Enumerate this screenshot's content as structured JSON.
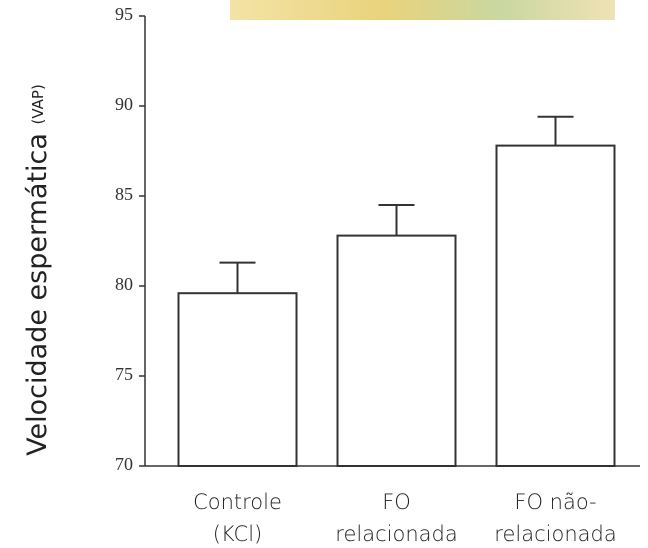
{
  "chart_data": {
    "type": "bar",
    "y_label": "Velocidade espermática",
    "y_label_unit": "(VAP)",
    "categories": [
      [
        "Controle",
        "(KCl)"
      ],
      [
        "FO",
        "relacionada"
      ],
      [
        "FO não-",
        "relacionada"
      ]
    ],
    "values": [
      79.6,
      82.8,
      87.8
    ],
    "errors": [
      1.7,
      1.7,
      1.6
    ],
    "color": "#ffffff",
    "ylim": [
      70,
      95
    ],
    "yticks": [
      70,
      75,
      80,
      85,
      90,
      95
    ]
  }
}
